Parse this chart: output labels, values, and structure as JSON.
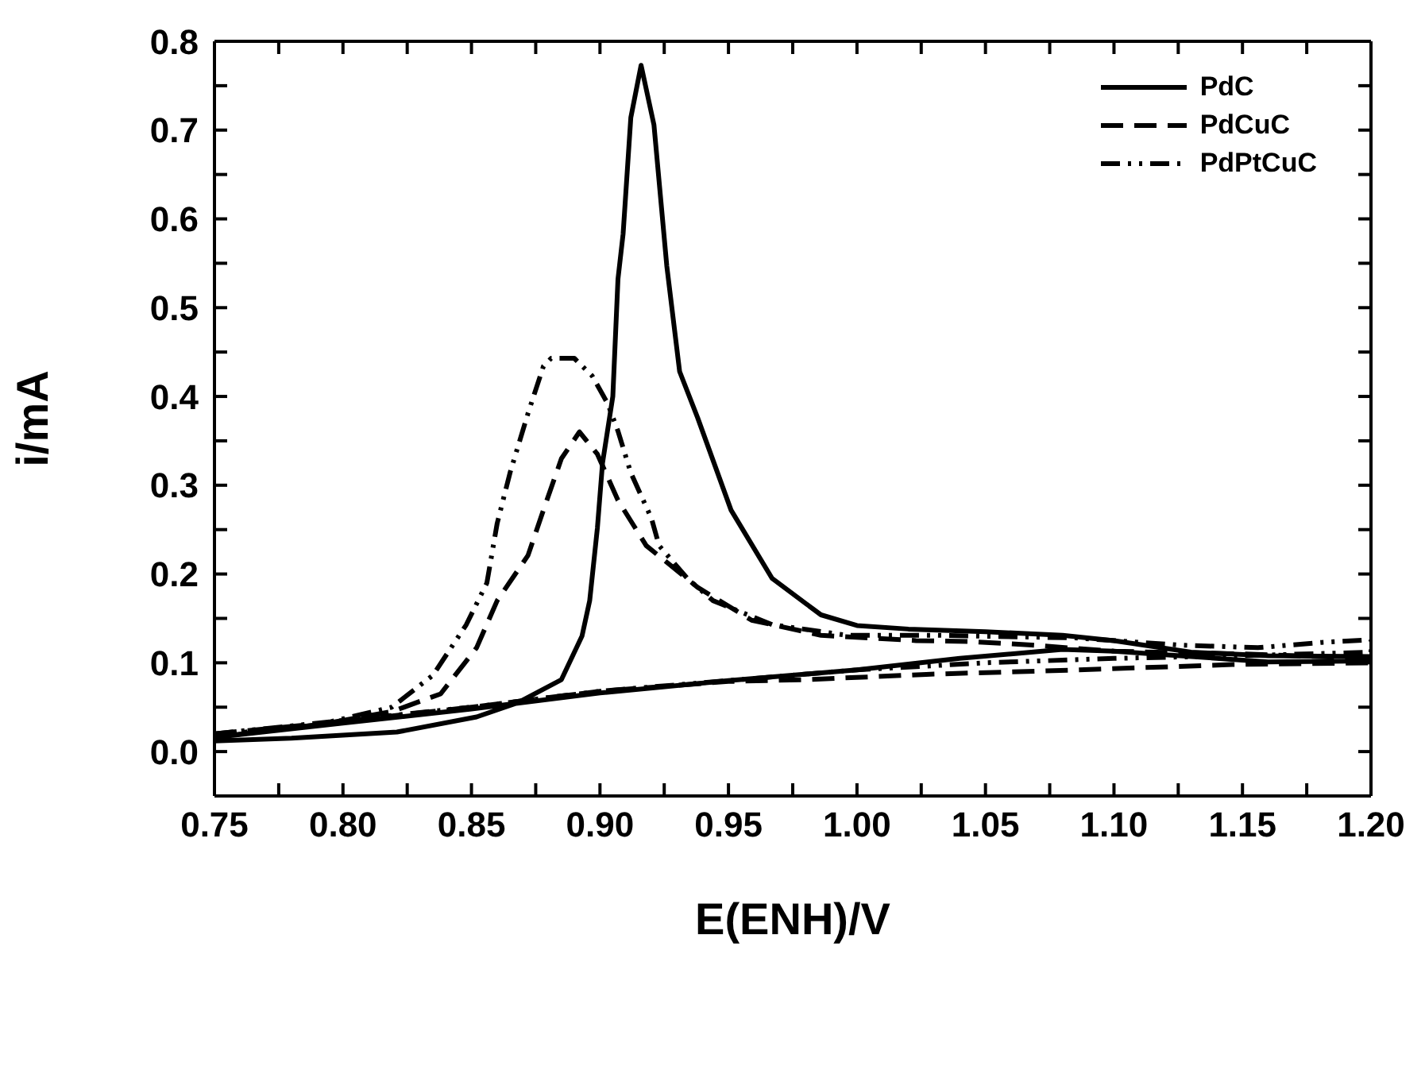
{
  "chart_data": {
    "type": "line",
    "xlabel": "E(ENH)/V",
    "ylabel": "i/mA",
    "xlim": [
      0.75,
      1.2
    ],
    "xticks": [
      {
        "value": 0.75,
        "label": "0.75"
      },
      {
        "value": 0.775,
        "label": null
      },
      {
        "value": 0.8,
        "label": "0.80"
      },
      {
        "value": 0.825,
        "label": null
      },
      {
        "value": 0.85,
        "label": "0.85"
      },
      {
        "value": 0.875,
        "label": null
      },
      {
        "value": 0.9,
        "label": "0.90"
      },
      {
        "value": 0.925,
        "label": null
      },
      {
        "value": 0.95,
        "label": "0.95"
      },
      {
        "value": 0.975,
        "label": null
      },
      {
        "value": 1.0,
        "label": "1.00"
      },
      {
        "value": 1.025,
        "label": null
      },
      {
        "value": 1.05,
        "label": "1.05"
      },
      {
        "value": 1.075,
        "label": null
      },
      {
        "value": 1.1,
        "label": "1.10"
      },
      {
        "value": 1.125,
        "label": null
      },
      {
        "value": 1.15,
        "label": "1.15"
      },
      {
        "value": 1.175,
        "label": null
      },
      {
        "value": 1.2,
        "label": "1.20"
      }
    ],
    "ylim": [
      -0.05,
      0.8
    ],
    "yticks": [
      {
        "value": 0,
        "label": "0.0"
      },
      {
        "value": 0.05,
        "label": null
      },
      {
        "value": 0.1,
        "label": "0.1"
      },
      {
        "value": 0.15,
        "label": null
      },
      {
        "value": 0.2,
        "label": "0.2"
      },
      {
        "value": 0.25,
        "label": null
      },
      {
        "value": 0.3,
        "label": "0.3"
      },
      {
        "value": 0.35,
        "label": null
      },
      {
        "value": 0.4,
        "label": "0.4"
      },
      {
        "value": 0.45,
        "label": null
      },
      {
        "value": 0.5,
        "label": "0.5"
      },
      {
        "value": 0.55,
        "label": null
      },
      {
        "value": 0.6,
        "label": "0.6"
      },
      {
        "value": 0.65,
        "label": null
      },
      {
        "value": 0.7,
        "label": "0.7"
      },
      {
        "value": 0.75,
        "label": null
      },
      {
        "value": 0.8,
        "label": "0.8"
      }
    ],
    "tick_labels": "xy",
    "legend": "top right",
    "marker": "none",
    "series": [
      {
        "name": "PdC",
        "color": "#000000",
        "line_style": "solid",
        "x": [
          0.75,
          0.8,
          0.85,
          0.9,
          0.95,
          1.0,
          1.04,
          1.08,
          1.1,
          1.12,
          1.16,
          1.2,
          1.2,
          1.16,
          1.13,
          1.1,
          1.08,
          1.05,
          1.02,
          1.0,
          0.986,
          0.967,
          0.951,
          0.938,
          0.931,
          0.926,
          0.921,
          0.916,
          0.912,
          0.909,
          0.907,
          0.905,
          0.901,
          0.899,
          0.896,
          0.893,
          0.885,
          0.868,
          0.852,
          0.821,
          0.78,
          0.75
        ],
        "values": [
          0.016,
          0.032,
          0.048,
          0.066,
          0.08,
          0.092,
          0.105,
          0.115,
          0.113,
          0.109,
          0.101,
          0.102,
          0.107,
          0.108,
          0.112,
          0.125,
          0.131,
          0.135,
          0.138,
          0.142,
          0.154,
          0.195,
          0.272,
          0.376,
          0.428,
          0.547,
          0.706,
          0.773,
          0.714,
          0.583,
          0.532,
          0.4,
          0.325,
          0.252,
          0.17,
          0.13,
          0.081,
          0.055,
          0.039,
          0.022,
          0.015,
          0.012
        ]
      },
      {
        "name": "PdCuC",
        "color": "#000000",
        "line_style": "dashed",
        "x": [
          0.75,
          0.8,
          0.85,
          0.9,
          0.95,
          0.98,
          1.027,
          1.086,
          1.146,
          1.2,
          1.2,
          1.15,
          1.1,
          1.068,
          1.043,
          1.023,
          0.986,
          0.959,
          0.938,
          0.918,
          0.907,
          0.899,
          0.892,
          0.885,
          0.878,
          0.872,
          0.86,
          0.852,
          0.838,
          0.819,
          0.79,
          0.755
        ],
        "values": [
          0.02,
          0.034,
          0.05,
          0.068,
          0.079,
          0.081,
          0.087,
          0.092,
          0.098,
          0.1,
          0.105,
          0.11,
          0.113,
          0.12,
          0.124,
          0.125,
          0.131,
          0.148,
          0.185,
          0.232,
          0.283,
          0.335,
          0.36,
          0.33,
          0.272,
          0.221,
          0.17,
          0.117,
          0.065,
          0.045,
          0.03,
          0.018
        ]
      },
      {
        "name": "PdPtCuC",
        "color": "#000000",
        "line_style": "dashdot",
        "x": [
          0.75,
          0.8,
          0.85,
          0.9,
          0.95,
          1.0,
          1.05,
          1.1,
          1.15,
          1.2,
          1.2,
          1.181,
          1.156,
          1.125,
          1.085,
          1.031,
          0.996,
          0.967,
          0.944,
          0.934,
          0.923,
          0.92,
          0.912,
          0.907,
          0.903,
          0.897,
          0.89,
          0.881,
          0.878,
          0.872,
          0.865,
          0.86,
          0.856,
          0.848,
          0.835,
          0.819,
          0.79,
          0.755
        ],
        "values": [
          0.02,
          0.035,
          0.05,
          0.068,
          0.08,
          0.092,
          0.1,
          0.105,
          0.108,
          0.112,
          0.126,
          0.123,
          0.117,
          0.12,
          0.128,
          0.131,
          0.131,
          0.143,
          0.17,
          0.195,
          0.232,
          0.263,
          0.314,
          0.361,
          0.392,
          0.423,
          0.443,
          0.443,
          0.434,
          0.381,
          0.314,
          0.257,
          0.19,
          0.143,
          0.086,
          0.05,
          0.03,
          0.02
        ]
      }
    ]
  }
}
